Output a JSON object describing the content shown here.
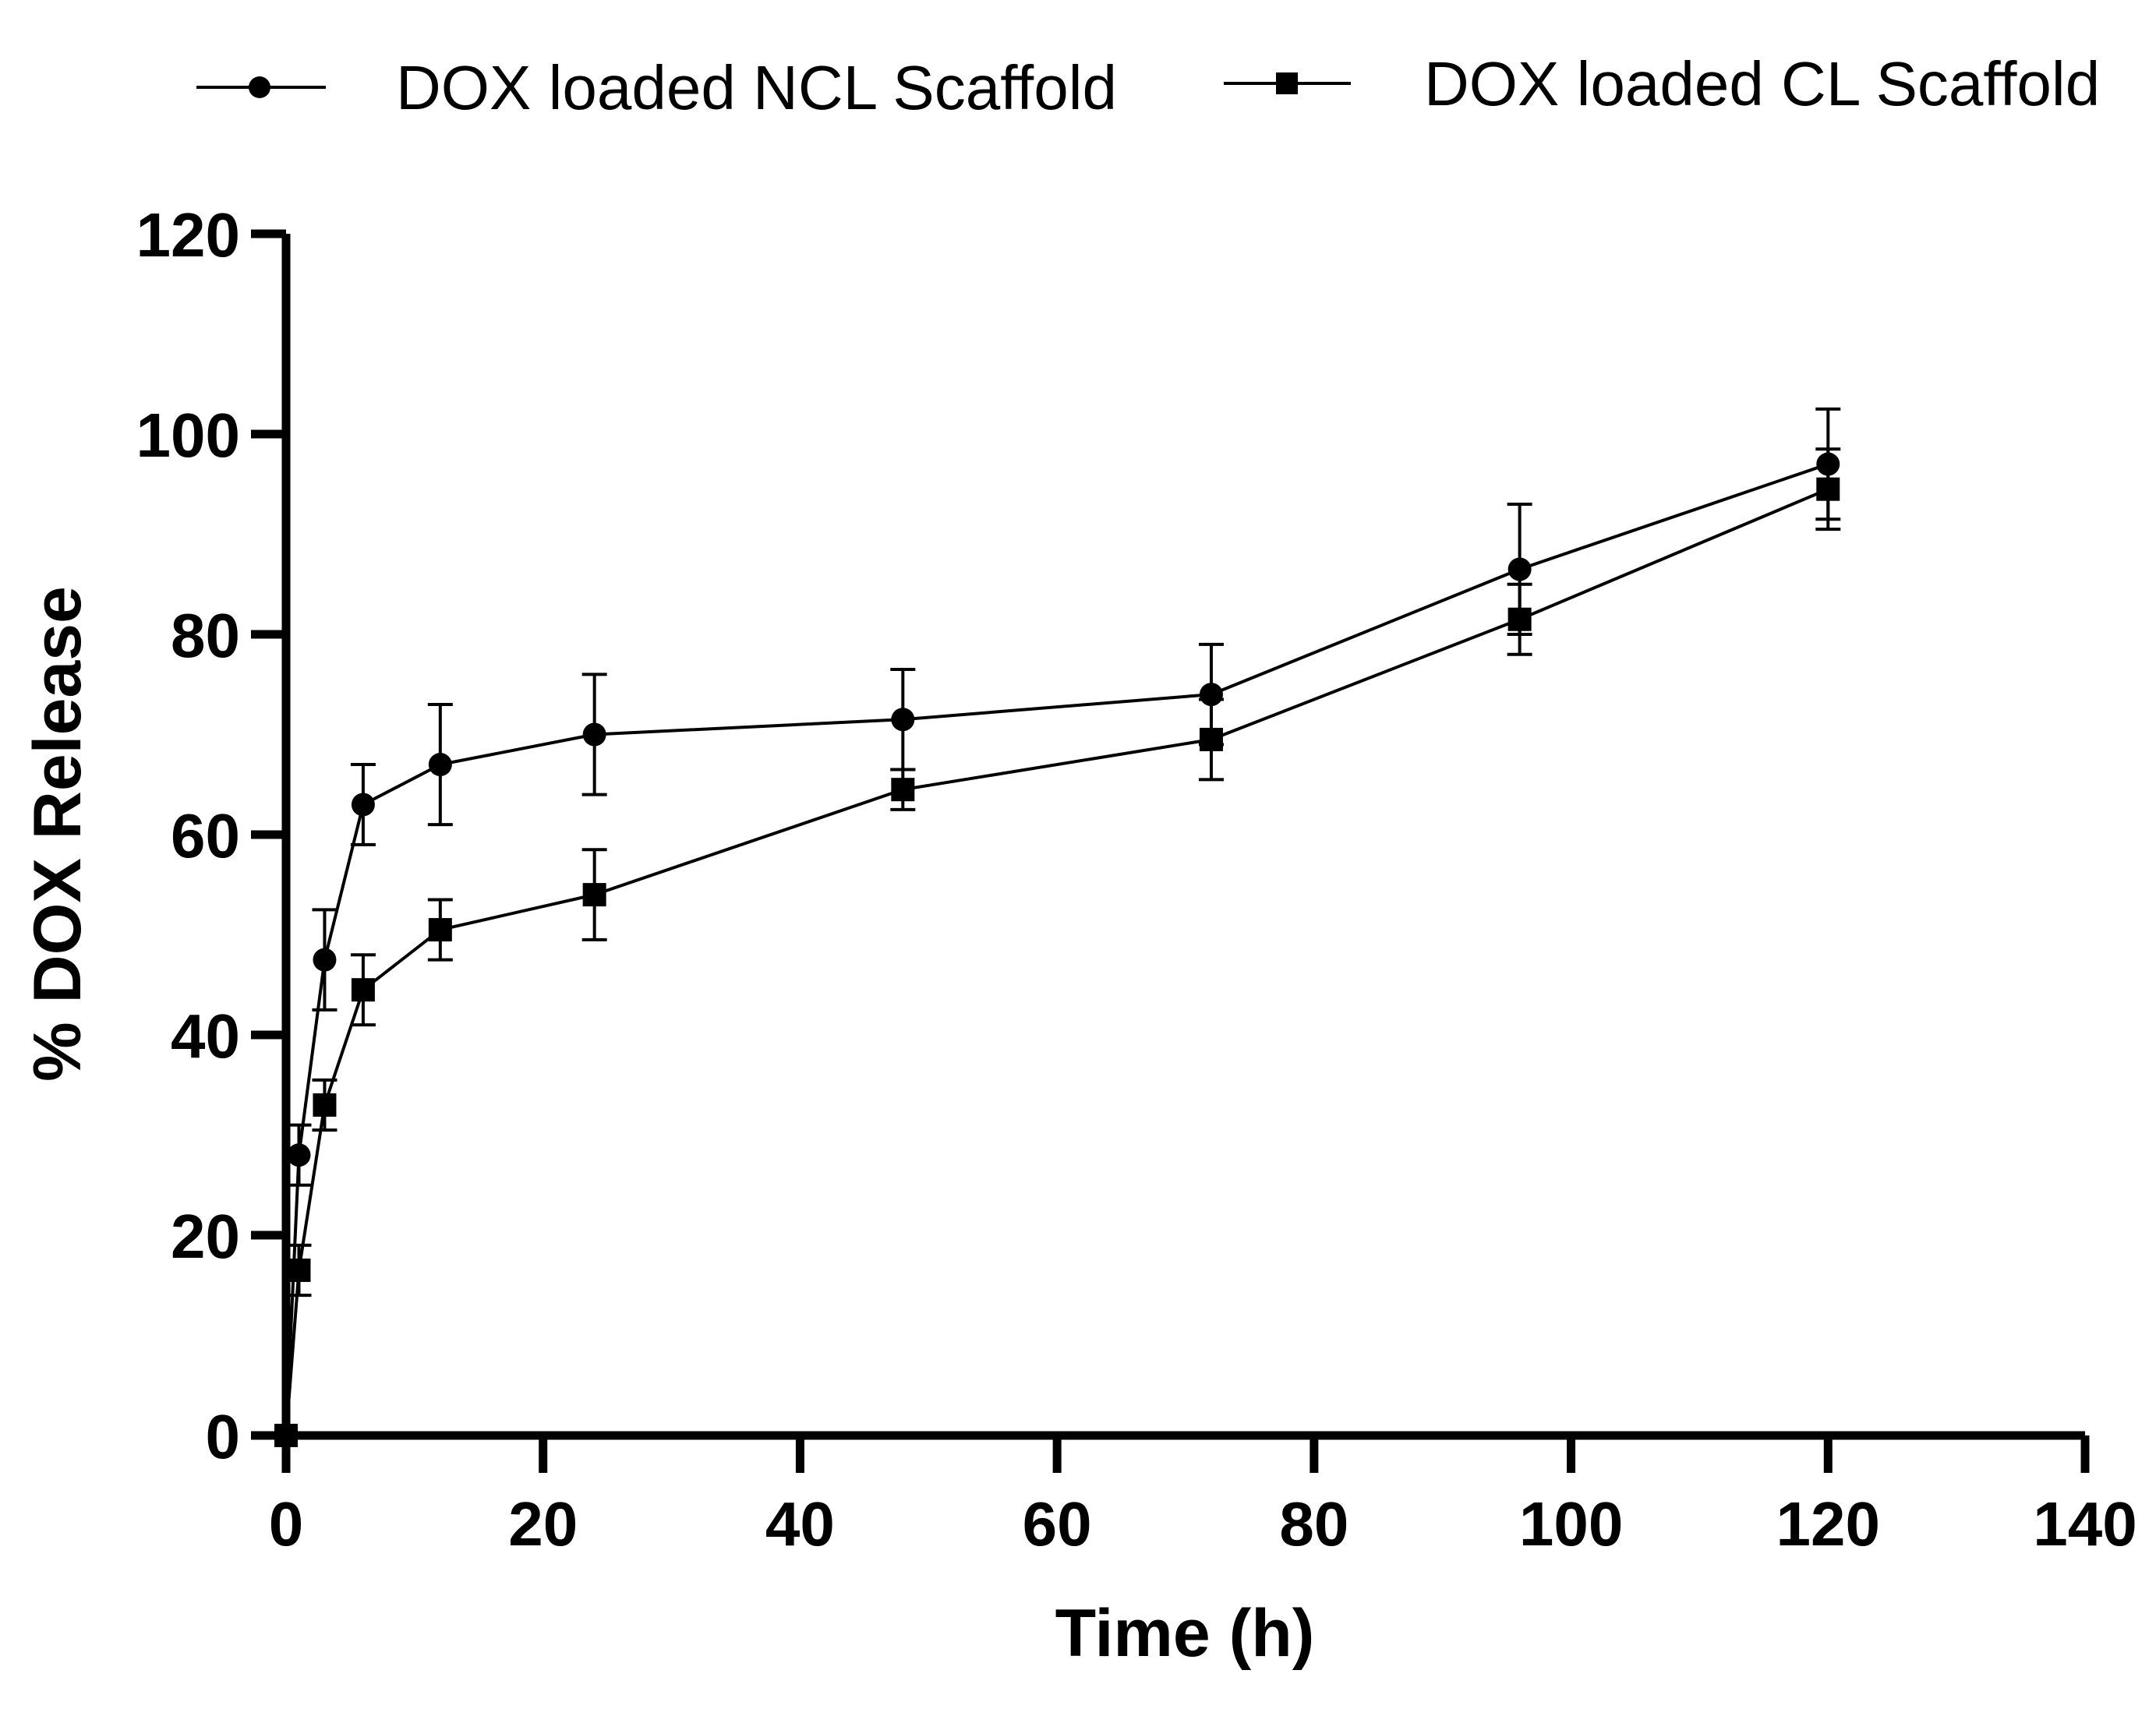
{
  "chart_data": {
    "type": "line",
    "title": "",
    "xlabel": "Time (h)",
    "ylabel": "% DOX Release",
    "xlim": [
      0,
      140
    ],
    "ylim": [
      0,
      120
    ],
    "xticks": [
      0,
      20,
      40,
      60,
      80,
      100,
      120,
      140
    ],
    "yticks": [
      0,
      20,
      40,
      60,
      80,
      100,
      120
    ],
    "grid": false,
    "legend_position": "top",
    "series": [
      {
        "name": "DOX loaded NCL Scaffold",
        "marker": "circle",
        "x": [
          0,
          1,
          3,
          6,
          12,
          24,
          48,
          72,
          96,
          120
        ],
        "y": [
          0,
          28,
          47.5,
          63,
          67,
          70,
          71.5,
          74,
          86.5,
          97
        ],
        "err": [
          0,
          3,
          5,
          4,
          6,
          6,
          5,
          5,
          6.5,
          5.5
        ]
      },
      {
        "name": "DOX loaded CL Scaffold",
        "marker": "square",
        "x": [
          0,
          1,
          3,
          6,
          12,
          24,
          48,
          72,
          96,
          120
        ],
        "y": [
          0,
          16.5,
          33,
          44.5,
          50.5,
          54,
          64.5,
          69.5,
          81.5,
          94.5
        ],
        "err": [
          0,
          2.5,
          2.5,
          3.5,
          3,
          4.5,
          2,
          4,
          3.5,
          4
        ]
      }
    ]
  }
}
